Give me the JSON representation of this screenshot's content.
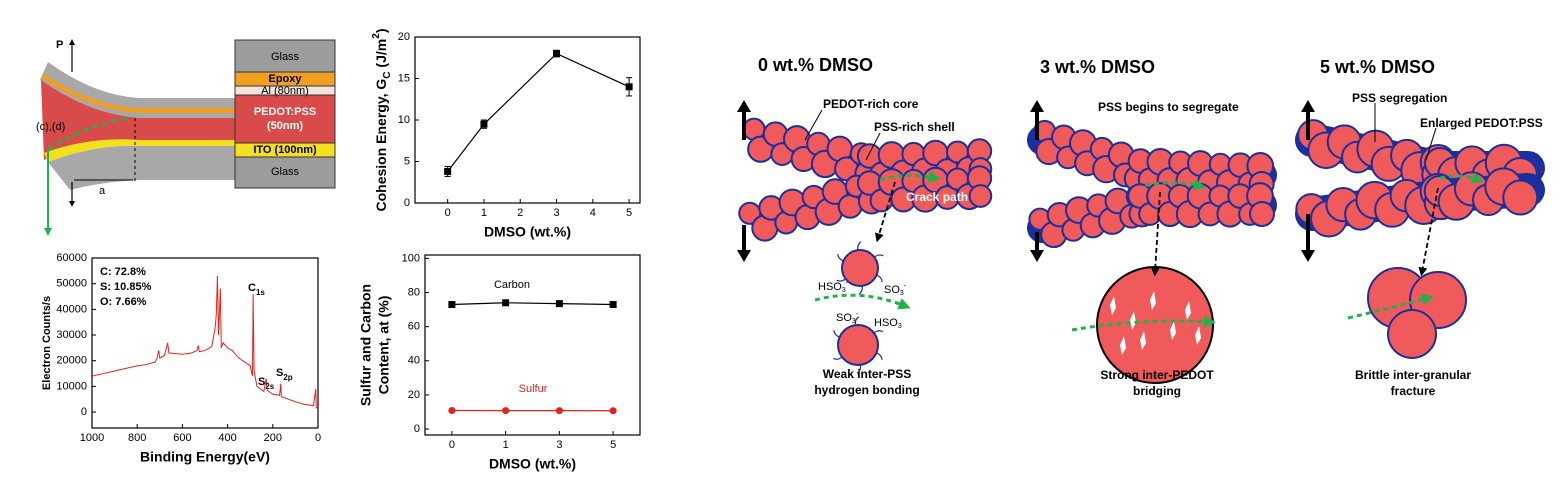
{
  "schematic": {
    "load": "P",
    "crack_tip": "(c),(d)",
    "crack_length": "a",
    "layers": [
      "Glass",
      "Epoxy",
      "Al (80nm)",
      "PEDOT:PSS",
      "(50nm)",
      "ITO (100nm)",
      "Glass"
    ]
  },
  "chart_data": [
    {
      "type": "line",
      "y_label": [
        "Cohesion Energy, G",
        "C",
        " (J/m",
        "2",
        ")"
      ],
      "x_label": "DMSO (wt.%)",
      "x": [
        0,
        1,
        3,
        5
      ],
      "values": [
        3.8,
        9.5,
        18,
        14
      ],
      "errors": [
        0.6,
        0.5,
        0.4,
        1.1
      ],
      "color": "#000000",
      "marker": "square",
      "xlim": [
        -0.9,
        5.3
      ],
      "xticks": [
        0,
        1,
        2,
        3,
        4,
        5
      ],
      "ylim": [
        0,
        20
      ],
      "yticks": [
        0,
        5,
        10,
        15,
        20
      ]
    },
    {
      "type": "line",
      "y_label": "Electron Counts/s",
      "x_label": "Binding Energy(eV)",
      "x": [
        1000,
        950,
        900,
        850,
        800,
        760,
        720,
        712,
        705,
        700,
        680,
        665,
        660,
        600,
        560,
        535,
        530,
        525,
        500,
        470,
        455,
        450,
        445,
        440,
        432,
        428,
        420,
        400,
        380,
        350,
        300,
        290,
        287,
        283,
        270,
        240,
        229,
        225,
        200,
        170,
        165,
        162,
        100,
        60,
        20,
        10,
        8,
        0
      ],
      "values": [
        14000,
        15000,
        16000,
        17000,
        18000,
        18500,
        19500,
        21000,
        24000,
        21000,
        22000,
        27000,
        23000,
        22500,
        23000,
        24000,
        26000,
        23500,
        24000,
        25500,
        33000,
        38000,
        53000,
        30000,
        48000,
        25000,
        27000,
        25000,
        24000,
        21000,
        18000,
        14000,
        46000,
        16000,
        10000,
        8000,
        13000,
        8500,
        7000,
        6500,
        11000,
        6000,
        4000,
        3000,
        2500,
        9000,
        2000,
        1000
      ],
      "color": "#e8201c",
      "xlim": [
        1000,
        0
      ],
      "xticks": [
        1000,
        800,
        600,
        400,
        200,
        0
      ],
      "ylim": [
        -6200,
        60000
      ],
      "yticks": [
        0,
        10000,
        20000,
        30000,
        40000,
        50000,
        60000
      ],
      "composition": [
        "C: 72.8%",
        "S: 10.85%",
        "O: 7.66%"
      ],
      "peak_labels": [
        [
          "C",
          "1s"
        ],
        [
          "S",
          "2s"
        ],
        [
          "S",
          "2p"
        ]
      ]
    },
    {
      "type": "line",
      "y_label": [
        "Sulfur and Carbon",
        "Content, at (%)"
      ],
      "x_label": "DMSO (wt.%)",
      "categories": [
        "0",
        "1",
        "3",
        "5"
      ],
      "series": [
        {
          "name": "Carbon",
          "color": "#000000",
          "marker": "square",
          "values": [
            73,
            74,
            73.5,
            73
          ]
        },
        {
          "name": "Sulfur",
          "color": "#e8201c",
          "marker": "circle",
          "values": [
            10.85,
            10.8,
            10.8,
            10.7
          ]
        }
      ],
      "ylim": [
        -3.5,
        102
      ],
      "yticks": [
        0,
        20,
        40,
        60,
        80,
        100
      ]
    }
  ],
  "mechanism": {
    "panels": [
      {
        "title": "0 wt.% DMSO",
        "labels": [
          "PEDOT-rich core",
          "PSS-rich shell",
          "Crack path"
        ],
        "ions": [
          [
            "HSO",
            "3",
            "-"
          ],
          [
            "SO",
            "3",
            "-"
          ],
          [
            "SO",
            "3",
            "-"
          ],
          [
            "HSO",
            "3"
          ]
        ],
        "caption": [
          "Weak inter-PSS",
          "hydrogen bonding"
        ]
      },
      {
        "title": "3 wt.% DMSO",
        "labels": [
          "PSS begins to segregate"
        ],
        "caption": [
          "Strong inter-PEDOT",
          "bridging"
        ]
      },
      {
        "title": "5 wt.% DMSO",
        "labels": [
          "PSS segregation",
          "Enlarged PEDOT:PSS"
        ],
        "caption": [
          "Brittle inter-granular",
          "fracture"
        ]
      }
    ]
  }
}
